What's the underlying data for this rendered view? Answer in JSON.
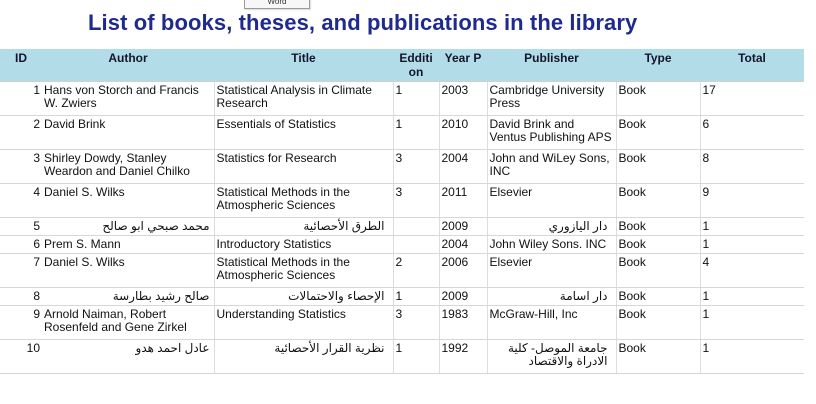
{
  "word_tab": "Word",
  "title": "List of books, theses, and publications in the library",
  "headers": {
    "id": "ID",
    "author": "Author",
    "title": "Title",
    "edition": "Edditi on",
    "year": "Year P",
    "publisher": "Publisher",
    "type": "Type",
    "total": "Total"
  },
  "rows": [
    {
      "id": "1",
      "author": "Hans von Storch and Francis W. Zwiers",
      "title": "Statistical Analysis in Climate Research",
      "edition": "1",
      "year": "2003",
      "publisher": "Cambridge University Press",
      "type": "Book",
      "total": "17"
    },
    {
      "id": "2",
      "author": "David Brink",
      "title": "Essentials of Statistics",
      "edition": "1",
      "year": "2010",
      "publisher": "David Brink and Ventus Publishing APS",
      "type": "Book",
      "total": "6"
    },
    {
      "id": "3",
      "author": "Shirley Dowdy, Stanley Weardon and Daniel Chilko",
      "title": "Statistics for Research",
      "edition": "3",
      "year": "2004",
      "publisher": "John and WiLey Sons, INC",
      "type": "Book",
      "total": "8"
    },
    {
      "id": "4",
      "author": "Daniel S. Wilks",
      "title": "Statistical Methods in the Atmospheric Sciences",
      "edition": "3",
      "year": "2011",
      "publisher": "Elsevier",
      "type": "Book",
      "total": "9"
    },
    {
      "id": "5",
      "author": "محمد صبحي ابو صالح",
      "title": "الطرق الأحصائية",
      "edition": "",
      "year": "2009",
      "publisher": "دار اليازوري",
      "type": "Book",
      "total": "1"
    },
    {
      "id": "6",
      "author": "Prem S. Mann",
      "title": "Introductory Statistics",
      "edition": "",
      "year": "2004",
      "publisher": "John Wiley Sons. INC",
      "type": "Book",
      "total": "1"
    },
    {
      "id": "7",
      "author": "Daniel S. Wilks",
      "title": "Statistical Methods in the Atmospheric Sciences",
      "edition": "2",
      "year": "2006",
      "publisher": "Elsevier",
      "type": "Book",
      "total": "4"
    },
    {
      "id": "8",
      "author": "صالح رشيد بطارسة",
      "title": "الإحصاء والاحتمالات",
      "edition": "1",
      "year": "2009",
      "publisher": "دار اسامة",
      "type": "Book",
      "total": "1"
    },
    {
      "id": "9",
      "author": "Arnold Naiman, Robert Rosenfeld and Gene Zirkel",
      "title": "Understanding Statistics",
      "edition": "3",
      "year": "1983",
      "publisher": "McGraw-Hill, Inc",
      "type": "Book",
      "total": "1"
    },
    {
      "id": "10",
      "author": "عادل احمد هدو",
      "title": "نظرية القرار الأحصائية",
      "edition": "1",
      "year": "1992",
      "publisher": "جامعة الموصل- كلية الادراة والاقتصاد",
      "type": "Book",
      "total": "1"
    }
  ]
}
